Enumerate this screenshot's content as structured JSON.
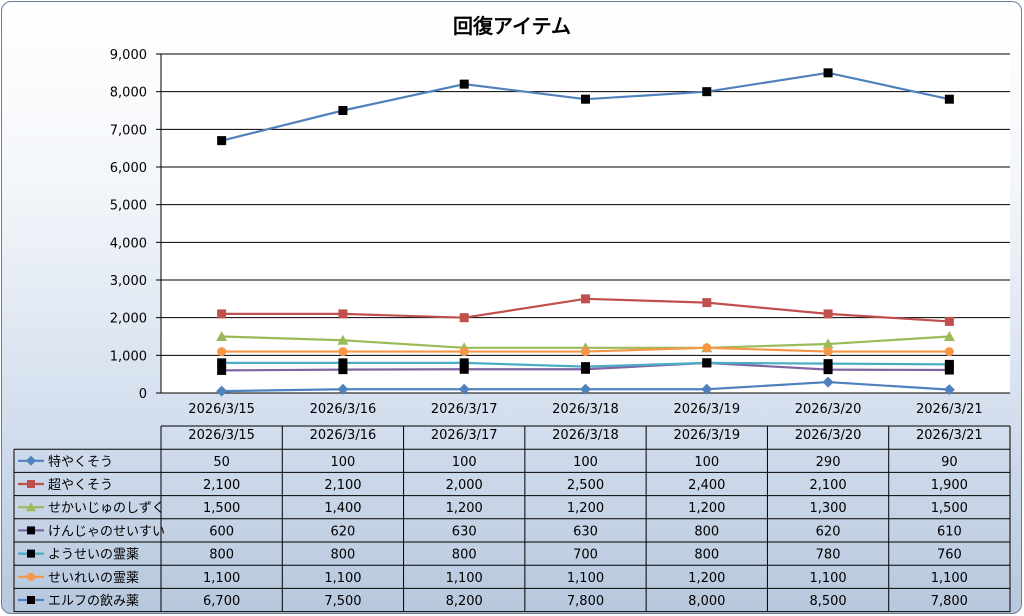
{
  "chart_data": {
    "type": "line",
    "title": "回復アイテム",
    "categories": [
      "2026/3/15",
      "2026/3/16",
      "2026/3/17",
      "2026/3/18",
      "2026/3/19",
      "2026/3/20",
      "2026/3/21"
    ],
    "ylim": [
      0,
      9000
    ],
    "yticks": [
      "0",
      "1,000",
      "2,000",
      "3,000",
      "4,000",
      "5,000",
      "6,000",
      "7,000",
      "8,000",
      "9,000"
    ],
    "grid": true,
    "legend": "data-table",
    "series": [
      {
        "name": "特やくそう",
        "color": "#4f81bd",
        "line": "#4f81bd",
        "marker": "diamond",
        "values": [
          50,
          100,
          100,
          100,
          100,
          290,
          90
        ],
        "labels": [
          "50",
          "100",
          "100",
          "100",
          "100",
          "290",
          "90"
        ]
      },
      {
        "name": "超やくそう",
        "color": "#c0504d",
        "line": "#c0504d",
        "marker": "square",
        "values": [
          2100,
          2100,
          2000,
          2500,
          2400,
          2100,
          1900
        ],
        "labels": [
          "2,100",
          "2,100",
          "2,000",
          "2,500",
          "2,400",
          "2,100",
          "1,900"
        ]
      },
      {
        "name": "せかいじゅのしずく",
        "color": "#9bbb59",
        "line": "#9bbb59",
        "marker": "triangle",
        "values": [
          1500,
          1400,
          1200,
          1200,
          1200,
          1300,
          1500
        ],
        "labels": [
          "1,500",
          "1,400",
          "1,200",
          "1,200",
          "1,200",
          "1,300",
          "1,500"
        ]
      },
      {
        "name": "けんじゃのせいすい",
        "color": "#000000",
        "line": "#8064a2",
        "marker": "square",
        "values": [
          600,
          620,
          630,
          630,
          800,
          620,
          610
        ],
        "labels": [
          "600",
          "620",
          "630",
          "630",
          "800",
          "620",
          "610"
        ]
      },
      {
        "name": "ようせいの霊薬",
        "color": "#000000",
        "line": "#4bacc6",
        "marker": "square",
        "values": [
          800,
          800,
          800,
          700,
          800,
          780,
          760
        ],
        "labels": [
          "800",
          "800",
          "800",
          "700",
          "800",
          "780",
          "760"
        ]
      },
      {
        "name": "せいれいの霊薬",
        "color": "#f79646",
        "line": "#f79646",
        "marker": "circle",
        "values": [
          1100,
          1100,
          1100,
          1100,
          1200,
          1100,
          1100
        ],
        "labels": [
          "1,100",
          "1,100",
          "1,100",
          "1,100",
          "1,200",
          "1,100",
          "1,100"
        ]
      },
      {
        "name": "エルフの飲み薬",
        "color": "#000000",
        "line": "#4f81bd",
        "marker": "square",
        "values": [
          6700,
          7500,
          8200,
          7800,
          8000,
          8500,
          7800
        ],
        "labels": [
          "6,700",
          "7,500",
          "8,200",
          "7,800",
          "8,000",
          "8,500",
          "7,800"
        ]
      }
    ]
  }
}
